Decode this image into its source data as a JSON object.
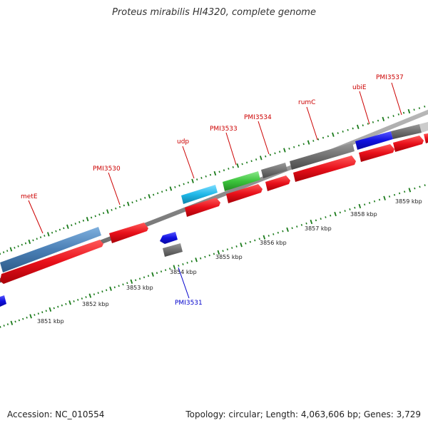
{
  "title": "Proteus mirabilis HI4320, complete genome",
  "footer": {
    "accession": "Accession: NC_010554",
    "summary": "Topology: circular; Length: 4,063,606 bp; Genes: 3,729"
  },
  "colors": {
    "forward_cds": "#e8101a",
    "reverse_cds": "#1010e0",
    "gray_feature": "#707070",
    "steelblue_feature": "#4a7fb5",
    "cyan_feature": "#1fb8e8",
    "green_feature": "#3cc43c",
    "label_forward": "#cc0000",
    "label_reverse": "#0000cc",
    "tick_green": "#1a7a1a"
  },
  "kbp_labels": [
    "3851 kbp",
    "3852 kbp",
    "3853 kbp",
    "3854 kbp",
    "3855 kbp",
    "3856 kbp",
    "3857 kbp",
    "3858 kbp",
    "3859 kbp"
  ],
  "gene_labels": [
    {
      "name": "metE",
      "strand": "forward"
    },
    {
      "name": "PMI3530",
      "strand": "forward"
    },
    {
      "name": "udp",
      "strand": "forward"
    },
    {
      "name": "PMI3533",
      "strand": "forward"
    },
    {
      "name": "PMI3534",
      "strand": "forward"
    },
    {
      "name": "rumC",
      "strand": "forward"
    },
    {
      "name": "ubiE",
      "strand": "forward"
    },
    {
      "name": "PMI3537",
      "strand": "forward"
    },
    {
      "name": "PMI3531",
      "strand": "reverse"
    }
  ]
}
